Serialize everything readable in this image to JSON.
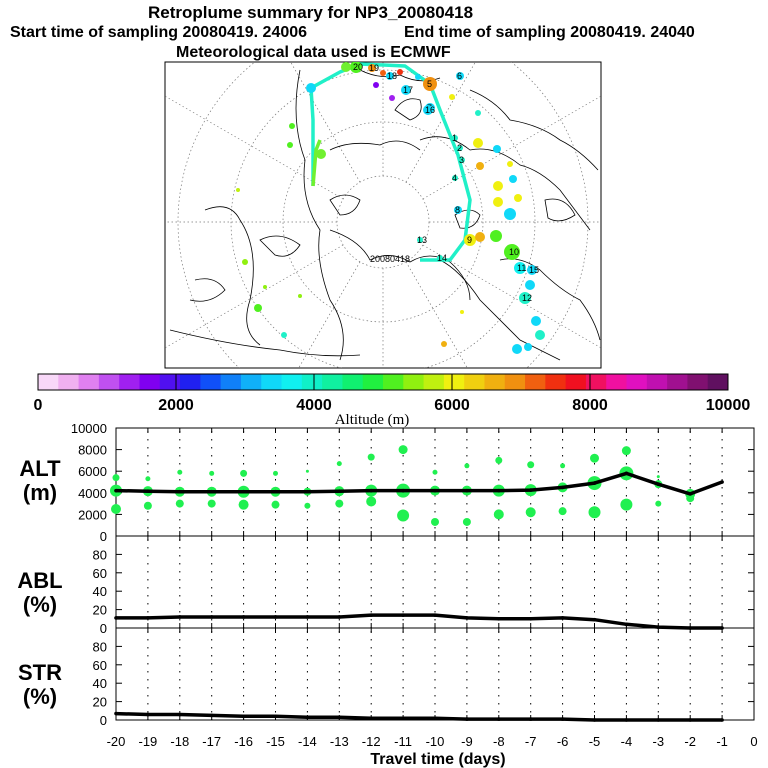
{
  "header": {
    "title": "Retroplume summary for NP3_20080418",
    "start_label": "Start time of sampling 20080419. 24006",
    "end_label": "End time of sampling 20080419. 24040",
    "met_label": "Meteorological data used is ECMWF"
  },
  "colorbar": {
    "xlabel": "Altitude (m)",
    "ticks": [
      "0",
      "2000",
      "4000",
      "6000",
      "8000",
      "10000"
    ],
    "colors": [
      "#f8d8f8",
      "#f0b0f0",
      "#e080f0",
      "#c050f0",
      "#a020f0",
      "#8000f0",
      "#5010f0",
      "#2020f0",
      "#1050f8",
      "#1080f8",
      "#10b0f8",
      "#10d8f8",
      "#10f0f0",
      "#10f0c8",
      "#10f0a0",
      "#10f070",
      "#20f040",
      "#50f020",
      "#90f010",
      "#c0f010",
      "#f0f010",
      "#f0d010",
      "#f0b010",
      "#f09010",
      "#f06010",
      "#f03010",
      "#f01020",
      "#f01060",
      "#f010a0",
      "#e010c0",
      "#c010b0",
      "#a01090",
      "#801070",
      "#601060"
    ]
  },
  "map": {
    "stamp_label": "20080418",
    "point_labels": [
      "1",
      "2",
      "3",
      "4",
      "5",
      "6",
      "7",
      "8",
      "9",
      "10",
      "11",
      "12",
      "13",
      "14",
      "15",
      "16",
      "17",
      "18",
      "19",
      "20"
    ]
  },
  "chart_data": [
    {
      "type": "line",
      "name": "ALT",
      "ylabel_line1": "ALT",
      "ylabel_line2": "(m)",
      "ylim": [
        0,
        10000
      ],
      "yticks": [
        "0",
        "2000",
        "4000",
        "6000",
        "8000",
        "10000"
      ],
      "x": [
        -20,
        -19,
        -18,
        -17,
        -16,
        -15,
        -14,
        -13,
        -12,
        -11,
        -10,
        -9,
        -8,
        -7,
        -6,
        -5,
        -4,
        -3,
        -2,
        -1
      ],
      "values": [
        4200,
        4150,
        4100,
        4100,
        4100,
        4100,
        4100,
        4150,
        4200,
        4200,
        4200,
        4200,
        4200,
        4250,
        4500,
        4900,
        5800,
        4800,
        3900,
        5000
      ],
      "cluster_low": [
        2500,
        2800,
        3000,
        3000,
        2900,
        2900,
        2800,
        3000,
        3200,
        1900,
        1300,
        1300,
        2000,
        2200,
        2300,
        2200,
        2900,
        3000,
        3500,
        null
      ],
      "cluster_high": [
        5400,
        5300,
        5900,
        5800,
        5800,
        5800,
        6000,
        6700,
        7300,
        8000,
        5900,
        6500,
        7000,
        6600,
        6500,
        7200,
        7900,
        5500,
        null,
        null
      ]
    },
    {
      "type": "line",
      "name": "ABL",
      "ylabel_line1": "ABL",
      "ylabel_line2": "(%)",
      "ylim": [
        0,
        100
      ],
      "yticks": [
        "0",
        "20",
        "40",
        "60",
        "80"
      ],
      "x": [
        -20,
        -19,
        -18,
        -17,
        -16,
        -15,
        -14,
        -13,
        -12,
        -11,
        -10,
        -9,
        -8,
        -7,
        -6,
        -5,
        -4,
        -3,
        -2,
        -1
      ],
      "values": [
        11,
        11,
        12,
        12,
        12,
        12,
        12,
        12,
        14,
        14,
        14,
        11,
        10,
        10,
        11,
        9,
        4,
        1,
        0,
        0
      ]
    },
    {
      "type": "line",
      "name": "STR",
      "ylabel_line1": "STR",
      "ylabel_line2": "(%)",
      "ylim": [
        0,
        100
      ],
      "yticks": [
        "0",
        "20",
        "40",
        "60",
        "80"
      ],
      "x": [
        -20,
        -19,
        -18,
        -17,
        -16,
        -15,
        -14,
        -13,
        -12,
        -11,
        -10,
        -9,
        -8,
        -7,
        -6,
        -5,
        -4,
        -3,
        -2,
        -1
      ],
      "values": [
        7,
        6,
        6,
        5,
        4,
        4,
        3,
        3,
        2,
        2,
        2,
        1,
        1,
        1,
        1,
        0,
        0,
        0,
        0,
        0
      ],
      "xlabel": "Travel time (days)",
      "xticks": [
        "-20",
        "-19",
        "-18",
        "-17",
        "-16",
        "-15",
        "-14",
        "-13",
        "-12",
        "-11",
        "-10",
        "-9",
        "-8",
        "-7",
        "-6",
        "-5",
        "-4",
        "-3",
        "-2",
        "-1",
        "0"
      ]
    }
  ]
}
